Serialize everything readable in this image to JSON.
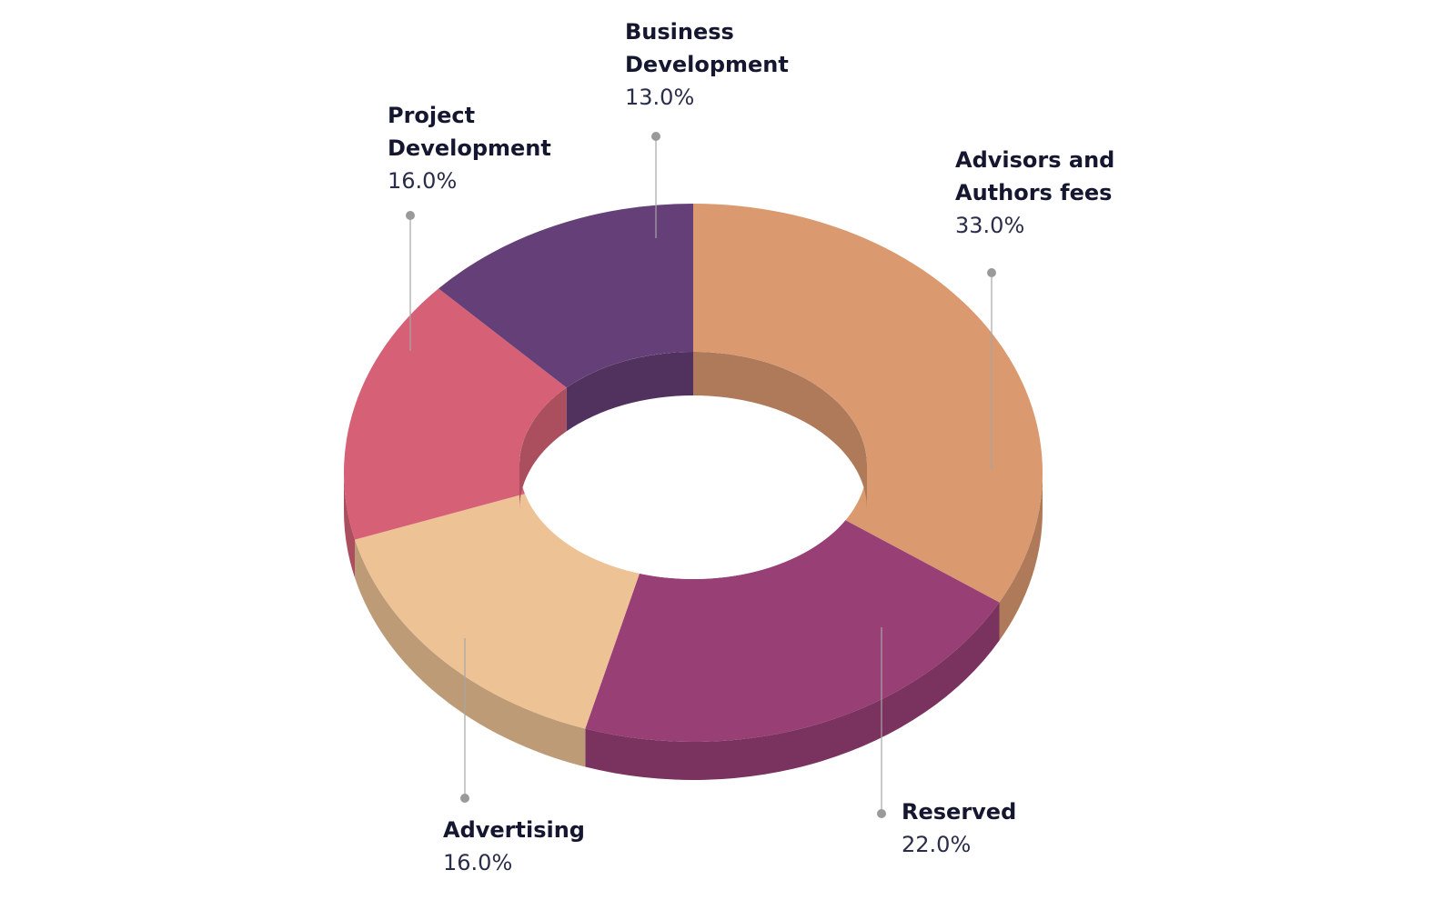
{
  "chart_data": {
    "type": "pie",
    "style": "3d-donut",
    "unit": "%",
    "slices": [
      {
        "name_lines": [
          "Advisors and",
          "Authors fees"
        ],
        "label": "33.0%",
        "value": 33.0,
        "color": "#da996f"
      },
      {
        "name_lines": [
          "Reserved"
        ],
        "label": "22.0%",
        "value": 22.0,
        "color": "#983f76"
      },
      {
        "name_lines": [
          "Advertising"
        ],
        "label": "16.0%",
        "value": 16.0,
        "color": "#edc295"
      },
      {
        "name_lines": [
          "Project",
          "Development"
        ],
        "label": "16.0%",
        "value": 16.0,
        "color": "#d66176"
      },
      {
        "name_lines": [
          "Business",
          "Development"
        ],
        "label": "13.0%",
        "value": 13.0,
        "color": "#653f77"
      }
    ]
  }
}
